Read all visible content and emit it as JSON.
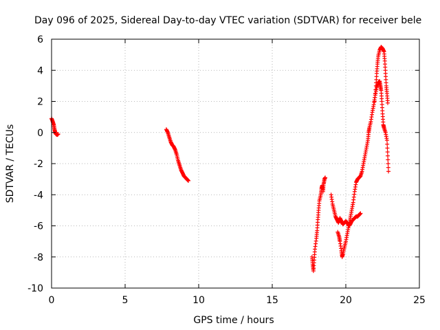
{
  "chart_data": {
    "type": "scatter",
    "title": "Day 096 of 2025, Sidereal Day-to-day VTEC variation (SDTVAR) for receiver bele",
    "xlabel": "GPS time / hours",
    "ylabel": "SDTVAR / TECUs",
    "xlim": [
      0,
      25
    ],
    "ylim": [
      -10,
      6
    ],
    "xticks": [
      0,
      5,
      10,
      15,
      20,
      25
    ],
    "yticks": [
      -10,
      -8,
      -6,
      -4,
      -2,
      0,
      2,
      4,
      6
    ],
    "grid": true,
    "marker": "+",
    "series_color": "#ff0000",
    "series": [
      {
        "name": "SDTVAR",
        "segments": [
          [
            [
              0.0,
              0.9
            ],
            [
              0.08,
              0.7
            ],
            [
              0.15,
              0.5
            ],
            [
              0.2,
              0.2
            ],
            [
              0.25,
              0.0
            ],
            [
              0.3,
              -0.1
            ],
            [
              0.38,
              -0.15
            ],
            [
              0.45,
              -0.1
            ]
          ],
          [
            [
              7.8,
              0.2
            ],
            [
              7.9,
              0.0
            ],
            [
              8.0,
              -0.3
            ],
            [
              8.1,
              -0.6
            ],
            [
              8.2,
              -0.8
            ],
            [
              8.3,
              -0.9
            ],
            [
              8.4,
              -1.1
            ],
            [
              8.5,
              -1.4
            ],
            [
              8.6,
              -1.8
            ],
            [
              8.7,
              -2.1
            ],
            [
              8.8,
              -2.4
            ],
            [
              8.9,
              -2.6
            ],
            [
              9.0,
              -2.8
            ],
            [
              9.1,
              -2.9
            ],
            [
              9.2,
              -3.0
            ],
            [
              9.3,
              -3.1
            ]
          ],
          [
            [
              17.7,
              -8.0
            ],
            [
              17.75,
              -8.5
            ],
            [
              17.8,
              -8.9
            ],
            [
              17.85,
              -8.2
            ],
            [
              17.9,
              -7.5
            ],
            [
              18.0,
              -6.8
            ],
            [
              18.05,
              -6.3
            ],
            [
              18.1,
              -5.6
            ],
            [
              18.15,
              -5.0
            ],
            [
              18.2,
              -4.4
            ],
            [
              18.3,
              -4.0
            ],
            [
              18.35,
              -3.6
            ],
            [
              18.4,
              -3.4
            ],
            [
              18.45,
              -3.8
            ],
            [
              18.5,
              -3.3
            ],
            [
              18.55,
              -3.0
            ],
            [
              18.6,
              -2.9
            ]
          ],
          [
            [
              19.0,
              -4.0
            ],
            [
              19.1,
              -4.6
            ],
            [
              19.2,
              -5.0
            ],
            [
              19.3,
              -5.4
            ],
            [
              19.4,
              -5.6
            ],
            [
              19.5,
              -5.8
            ],
            [
              19.6,
              -5.5
            ],
            [
              19.7,
              -5.7
            ],
            [
              19.8,
              -5.9
            ],
            [
              19.9,
              -5.8
            ],
            [
              20.0,
              -5.7
            ],
            [
              20.1,
              -5.8
            ],
            [
              20.2,
              -6.0
            ],
            [
              20.3,
              -5.9
            ],
            [
              20.4,
              -5.7
            ],
            [
              20.5,
              -5.6
            ],
            [
              20.6,
              -5.5
            ],
            [
              20.7,
              -5.4
            ],
            [
              20.8,
              -5.4
            ],
            [
              20.9,
              -5.3
            ],
            [
              21.0,
              -5.2
            ]
          ],
          [
            [
              19.45,
              -6.4
            ],
            [
              19.55,
              -6.7
            ],
            [
              19.6,
              -7.0
            ],
            [
              19.7,
              -7.6
            ],
            [
              19.75,
              -8.0
            ],
            [
              19.8,
              -7.8
            ],
            [
              19.9,
              -7.4
            ],
            [
              20.0,
              -7.0
            ],
            [
              20.1,
              -6.5
            ],
            [
              20.2,
              -6.0
            ],
            [
              20.3,
              -5.5
            ],
            [
              20.4,
              -5.0
            ],
            [
              20.5,
              -4.5
            ],
            [
              20.6,
              -3.8
            ],
            [
              20.7,
              -3.2
            ],
            [
              20.8,
              -3.0
            ],
            [
              20.9,
              -2.9
            ],
            [
              21.0,
              -2.8
            ],
            [
              21.1,
              -2.5
            ],
            [
              21.2,
              -2.0
            ],
            [
              21.3,
              -1.5
            ],
            [
              21.4,
              -1.0
            ],
            [
              21.5,
              -0.5
            ],
            [
              21.55,
              0.0
            ],
            [
              21.6,
              0.3
            ],
            [
              21.7,
              0.7
            ],
            [
              21.8,
              1.3
            ],
            [
              21.9,
              1.8
            ],
            [
              22.0,
              2.4
            ],
            [
              22.1,
              2.9
            ],
            [
              22.2,
              3.2
            ],
            [
              22.3,
              3.3
            ],
            [
              22.35,
              3.0
            ],
            [
              22.4,
              2.7
            ],
            [
              22.45,
              2.0
            ],
            [
              22.5,
              1.2
            ],
            [
              22.55,
              0.5
            ],
            [
              22.6,
              0.3
            ],
            [
              22.7,
              0.0
            ],
            [
              22.8,
              -0.5
            ],
            [
              22.85,
              -1.5
            ],
            [
              22.9,
              -2.5
            ]
          ],
          [
            [
              21.95,
              2.0
            ],
            [
              22.05,
              3.0
            ],
            [
              22.1,
              3.8
            ],
            [
              22.15,
              4.4
            ],
            [
              22.2,
              4.9
            ],
            [
              22.3,
              5.3
            ],
            [
              22.4,
              5.5
            ],
            [
              22.5,
              5.4
            ],
            [
              22.6,
              5.2
            ],
            [
              22.65,
              4.6
            ],
            [
              22.7,
              3.8
            ],
            [
              22.75,
              3.0
            ],
            [
              22.8,
              2.5
            ],
            [
              22.85,
              1.9
            ]
          ]
        ]
      }
    ]
  }
}
